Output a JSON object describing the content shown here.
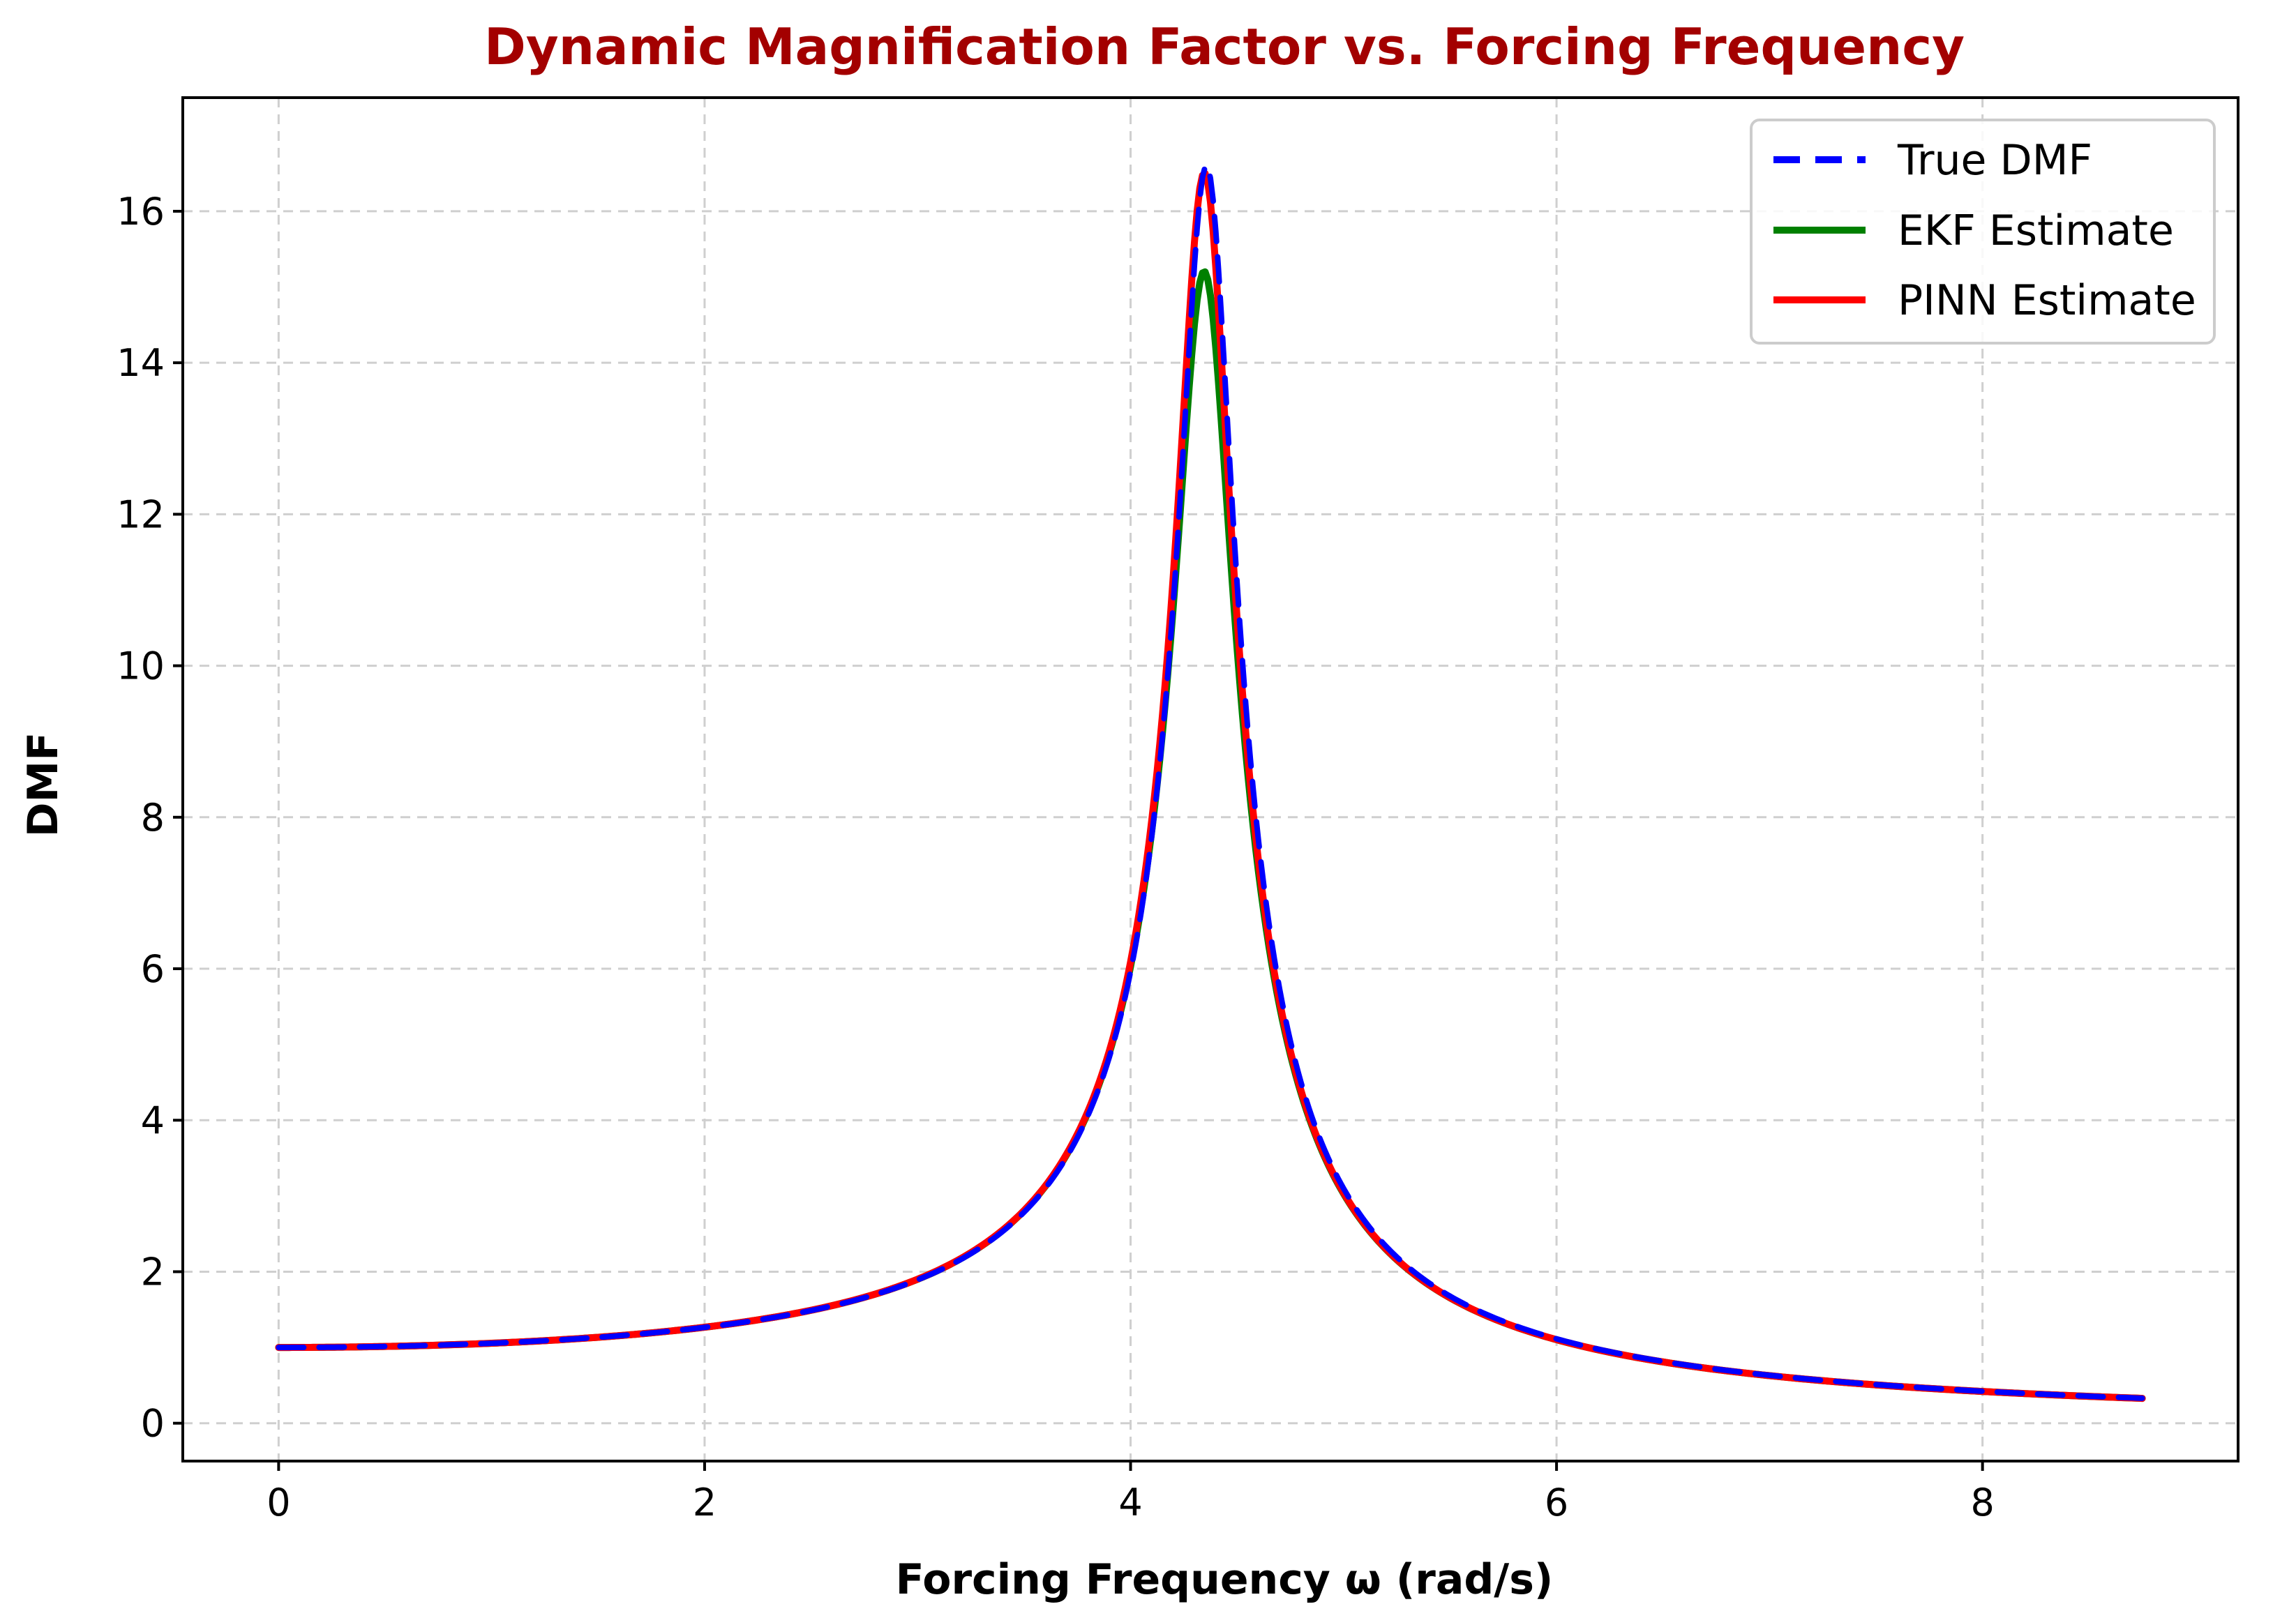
{
  "chart_data": {
    "type": "line",
    "title": "Dynamic Magnification Factor vs. Forcing Frequency",
    "xlabel": "Forcing Frequency ω (rad/s)",
    "ylabel": "DMF",
    "xlim": [
      -0.45,
      9.2
    ],
    "ylim": [
      -0.5,
      17.5
    ],
    "xticks": [
      0,
      2,
      4,
      6,
      8
    ],
    "yticks": [
      0,
      2,
      4,
      6,
      8,
      10,
      12,
      14,
      16
    ],
    "grid": true,
    "legend_position": "top-right",
    "x_range": [
      0,
      8.75
    ],
    "natural_frequency": 4.36,
    "series": [
      {
        "name": "True DMF",
        "color": "#0000ff",
        "style": "dashed",
        "peak_value": 16.6,
        "peak_x": 4.36
      },
      {
        "name": "EKF Estimate",
        "color": "#008000",
        "style": "solid",
        "peak_value": 15.2,
        "peak_x": 4.35
      },
      {
        "name": "PINN Estimate",
        "color": "#ff0000",
        "style": "solid",
        "peak_value": 16.5,
        "peak_x": 4.35
      }
    ]
  }
}
